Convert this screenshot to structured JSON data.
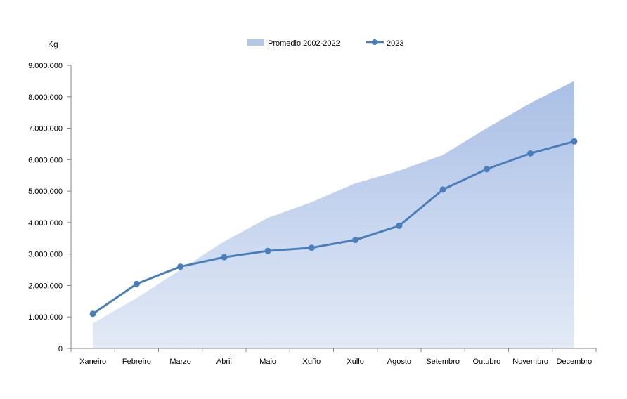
{
  "chart_data": {
    "type": "area",
    "ylabel": "Kg",
    "ylim": [
      0,
      9000000
    ],
    "yticks": [
      0,
      1000000,
      2000000,
      3000000,
      4000000,
      5000000,
      6000000,
      7000000,
      8000000,
      9000000
    ],
    "ytick_labels": [
      "0",
      "1.000.000",
      "2.000.000",
      "3.000.000",
      "4.000.000",
      "5.000.000",
      "6.000.000",
      "7.000.000",
      "8.000.000",
      "9.000.000"
    ],
    "categories": [
      "Xaneiro",
      "Febreiro",
      "Marzo",
      "Abril",
      "Maio",
      "Xuño",
      "Xullo",
      "Agosto",
      "Setembro",
      "Outubro",
      "Novembro",
      "Decembro"
    ],
    "legend_position": "top-center",
    "grid": false,
    "series": [
      {
        "name": "Promedio 2002-2022",
        "kind": "area",
        "color": "#b4c7e7",
        "values": [
          800000,
          1600000,
          2500000,
          3400000,
          4150000,
          4650000,
          5250000,
          5650000,
          6150000,
          7000000,
          7800000,
          8500000
        ]
      },
      {
        "name": "2023",
        "kind": "line",
        "color": "#4a7ebb",
        "values": [
          1100000,
          2050000,
          2600000,
          2900000,
          3100000,
          3200000,
          3450000,
          3900000,
          5050000,
          5700000,
          6200000,
          6580000
        ]
      }
    ]
  }
}
